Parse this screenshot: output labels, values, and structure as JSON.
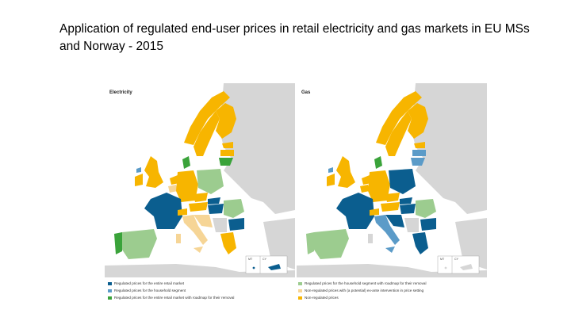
{
  "title": "Application of regulated end-user prices in retail electricity  and gas markets in EU MSs and Norway - 2015",
  "maps": {
    "electricity_label": "Electricity",
    "gas_label": "Gas",
    "inset_malta": "MT",
    "inset_cyprus": "CY"
  },
  "legend": [
    {
      "label": "Regulated prices for the entire retail market",
      "color": "#0b5e8f"
    },
    {
      "label": "Regulated prices for the household segment",
      "color": "#5b9bc8"
    },
    {
      "label": "Regulated prices for the entire retail market with roadmap for their removal",
      "color": "#3aa33a"
    },
    {
      "label": "Regulated prices for the household segment with roadmap for their removal",
      "color": "#9ccc8f"
    },
    {
      "label": "Non-regulated prices with (a potential) ex-ante intervention in price setting",
      "color": "#f6d596"
    },
    {
      "label": "Non-regulated prices",
      "color": "#f7b500"
    }
  ],
  "colors": {
    "background_land": "#d6d6d6",
    "sea": "#ffffff"
  }
}
